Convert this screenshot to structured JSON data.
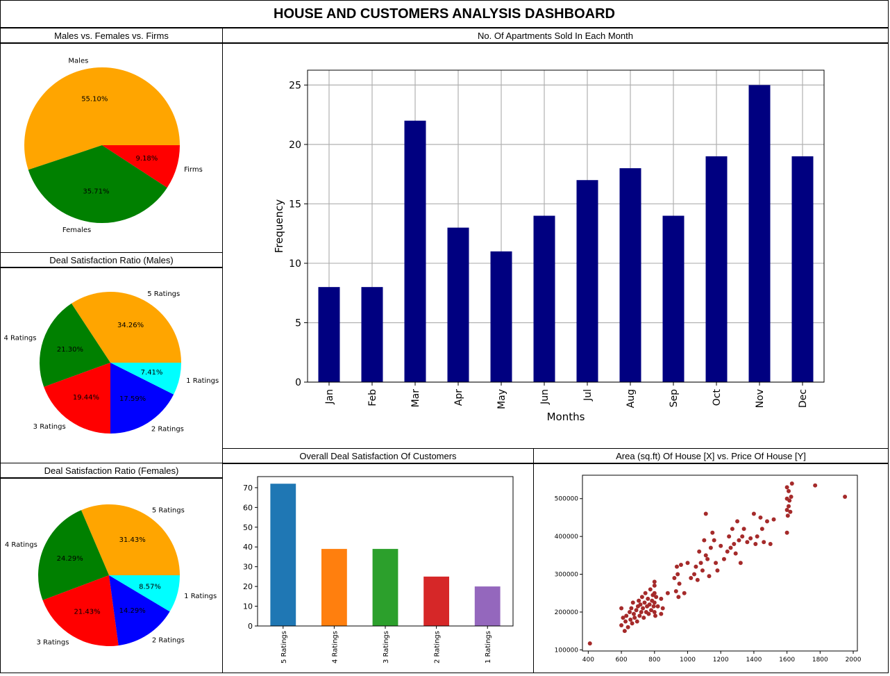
{
  "dashboard_title": "HOUSE AND CUSTOMERS ANALYSIS DASHBOARD",
  "panels": {
    "gender": "Males vs. Females vs. Firms",
    "monthly": "No. Of Apartments Sold In Each Month",
    "males": "Deal Satisfaction Ratio (Males)",
    "females": "Deal Satisfaction Ratio (Females)",
    "overall": "Overall Deal Satisfaction Of Customers",
    "scatter": "Area (sq.ft) Of House [X] vs. Price Of House [Y]"
  },
  "colors": {
    "orange": "#ffa500",
    "green": "#008000",
    "red": "#ff0000",
    "blue": "#0000ff",
    "cyan": "#00ffff",
    "navy": "#000080",
    "brown": "#a52a2a"
  },
  "chart_data": [
    {
      "id": "gender_pie",
      "type": "pie",
      "labels": [
        "Males",
        "Females",
        "Firms"
      ],
      "pct_labels": [
        "55.10%",
        "35.71%",
        "9.18%"
      ],
      "values": [
        55.1,
        35.71,
        9.18
      ],
      "colors": [
        "#ffa500",
        "#008000",
        "#ff0000"
      ]
    },
    {
      "id": "monthly_bar",
      "type": "bar",
      "categories": [
        "Jan",
        "Feb",
        "Mar",
        "Apr",
        "May",
        "Jun",
        "Jul",
        "Aug",
        "Sep",
        "Oct",
        "Nov",
        "Dec"
      ],
      "values": [
        8,
        8,
        22,
        13,
        11,
        14,
        17,
        18,
        14,
        19,
        25,
        19
      ],
      "xlabel": "Months",
      "ylabel": "Frequency",
      "ylim": [
        0,
        26.25
      ],
      "yticks": [
        0,
        5,
        10,
        15,
        20,
        25
      ],
      "grid": true,
      "color": "#000080"
    },
    {
      "id": "males_pie",
      "type": "pie",
      "labels": [
        "5 Ratings",
        "4 Ratings",
        "3 Ratings",
        "2 Ratings",
        "1 Ratings"
      ],
      "pct_labels": [
        "34.26%",
        "21.30%",
        "19.44%",
        "17.59%",
        "7.41%"
      ],
      "values": [
        34.26,
        21.3,
        19.44,
        17.59,
        7.41
      ],
      "colors": [
        "#ffa500",
        "#008000",
        "#ff0000",
        "#0000ff",
        "#00ffff"
      ]
    },
    {
      "id": "females_pie",
      "type": "pie",
      "labels": [
        "5 Ratings",
        "4 Ratings",
        "3 Ratings",
        "2 Ratings",
        "1 Ratings"
      ],
      "pct_labels": [
        "31.43%",
        "24.29%",
        "21.43%",
        "14.29%",
        "8.57%"
      ],
      "values": [
        31.43,
        24.29,
        21.43,
        14.29,
        8.57
      ],
      "colors": [
        "#ffa500",
        "#008000",
        "#ff0000",
        "#0000ff",
        "#00ffff"
      ]
    },
    {
      "id": "overall_bar",
      "type": "bar",
      "categories": [
        "5 Ratings",
        "4 Ratings",
        "3 Ratings",
        "2 Ratings",
        "1 Ratings"
      ],
      "values": [
        72,
        39,
        39,
        25,
        20
      ],
      "colors": [
        "#1f77b4",
        "#ff7f0e",
        "#2ca02c",
        "#d62728",
        "#9467bd"
      ],
      "ylim": [
        0,
        75.6
      ],
      "yticks": [
        0,
        10,
        20,
        30,
        40,
        50,
        60,
        70
      ]
    },
    {
      "id": "area_price_scatter",
      "type": "scatter",
      "xlim": [
        365,
        2025
      ],
      "ylim": [
        97000,
        562000
      ],
      "xticks": [
        400,
        600,
        800,
        1000,
        1200,
        1400,
        1600,
        1800,
        2000
      ],
      "yticks": [
        100000,
        200000,
        300000,
        400000,
        500000
      ],
      "color": "#a52a2a",
      "points": [
        [
          410,
          117000
        ],
        [
          600,
          165000
        ],
        [
          600,
          210000
        ],
        [
          610,
          185000
        ],
        [
          620,
          150000
        ],
        [
          625,
          175000
        ],
        [
          630,
          190000
        ],
        [
          640,
          160000
        ],
        [
          650,
          200000
        ],
        [
          655,
          180000
        ],
        [
          660,
          210000
        ],
        [
          665,
          170000
        ],
        [
          670,
          225000
        ],
        [
          675,
          195000
        ],
        [
          680,
          185000
        ],
        [
          690,
          205000
        ],
        [
          695,
          175000
        ],
        [
          700,
          215000
        ],
        [
          705,
          230000
        ],
        [
          710,
          190000
        ],
        [
          715,
          220000
        ],
        [
          720,
          200000
        ],
        [
          725,
          240000
        ],
        [
          730,
          210000
        ],
        [
          735,
          185000
        ],
        [
          740,
          225000
        ],
        [
          745,
          250000
        ],
        [
          750,
          200000
        ],
        [
          755,
          215000
        ],
        [
          760,
          235000
        ],
        [
          765,
          195000
        ],
        [
          770,
          220000
        ],
        [
          775,
          260000
        ],
        [
          780,
          205000
        ],
        [
          785,
          230000
        ],
        [
          790,
          245000
        ],
        [
          795,
          215000
        ],
        [
          800,
          270000
        ],
        [
          800,
          200000
        ],
        [
          800,
          250000
        ],
        [
          800,
          280000
        ],
        [
          800,
          225000
        ],
        [
          805,
          190000
        ],
        [
          810,
          240000
        ],
        [
          820,
          215000
        ],
        [
          840,
          195000
        ],
        [
          840,
          235000
        ],
        [
          850,
          210000
        ],
        [
          880,
          250000
        ],
        [
          920,
          290000
        ],
        [
          930,
          255000
        ],
        [
          935,
          320000
        ],
        [
          940,
          300000
        ],
        [
          945,
          240000
        ],
        [
          950,
          275000
        ],
        [
          960,
          325000
        ],
        [
          980,
          250000
        ],
        [
          1000,
          330000
        ],
        [
          1020,
          290000
        ],
        [
          1040,
          300000
        ],
        [
          1050,
          320000
        ],
        [
          1060,
          285000
        ],
        [
          1070,
          360000
        ],
        [
          1080,
          330000
        ],
        [
          1090,
          310000
        ],
        [
          1100,
          390000
        ],
        [
          1110,
          350000
        ],
        [
          1110,
          460000
        ],
        [
          1120,
          340000
        ],
        [
          1130,
          295000
        ],
        [
          1140,
          370000
        ],
        [
          1150,
          410000
        ],
        [
          1160,
          390000
        ],
        [
          1170,
          330000
        ],
        [
          1180,
          310000
        ],
        [
          1200,
          375000
        ],
        [
          1220,
          340000
        ],
        [
          1240,
          360000
        ],
        [
          1250,
          400000
        ],
        [
          1260,
          370000
        ],
        [
          1270,
          420000
        ],
        [
          1280,
          380000
        ],
        [
          1290,
          355000
        ],
        [
          1300,
          440000
        ],
        [
          1310,
          390000
        ],
        [
          1320,
          330000
        ],
        [
          1330,
          400000
        ],
        [
          1340,
          420000
        ],
        [
          1360,
          385000
        ],
        [
          1380,
          395000
        ],
        [
          1400,
          460000
        ],
        [
          1410,
          380000
        ],
        [
          1420,
          400000
        ],
        [
          1440,
          450000
        ],
        [
          1450,
          420000
        ],
        [
          1460,
          385000
        ],
        [
          1480,
          440000
        ],
        [
          1500,
          380000
        ],
        [
          1520,
          445000
        ],
        [
          1600,
          410000
        ],
        [
          1600,
          470000
        ],
        [
          1600,
          500000
        ],
        [
          1600,
          530000
        ],
        [
          1605,
          455000
        ],
        [
          1610,
          520000
        ],
        [
          1610,
          480000
        ],
        [
          1615,
          495000
        ],
        [
          1620,
          465000
        ],
        [
          1625,
          505000
        ],
        [
          1630,
          540000
        ],
        [
          1770,
          535000
        ],
        [
          1950,
          505000
        ]
      ]
    }
  ]
}
